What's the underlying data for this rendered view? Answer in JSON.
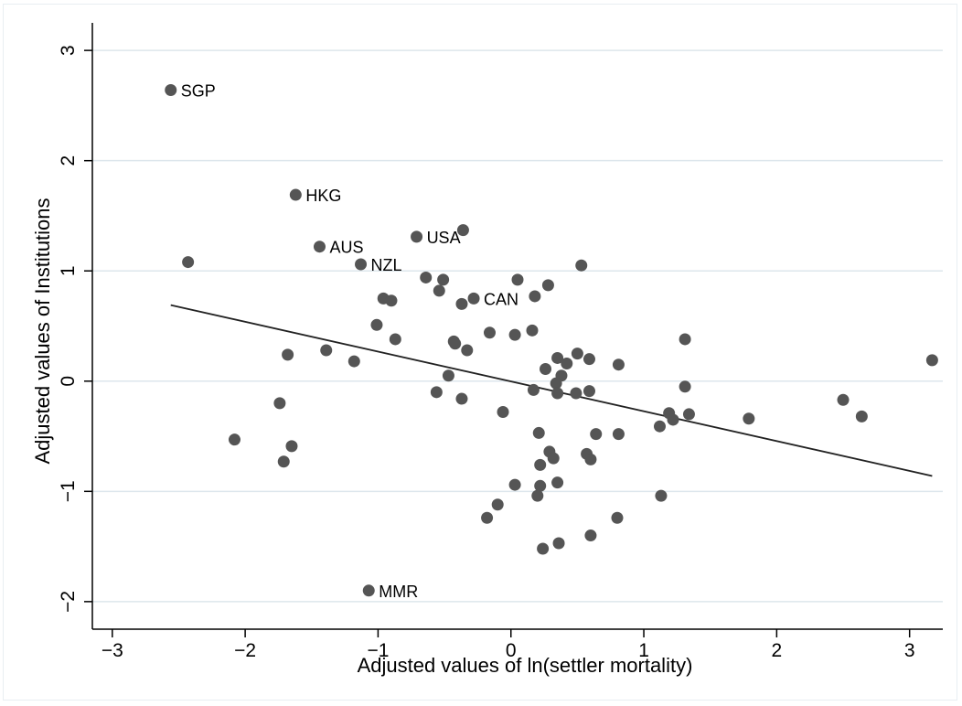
{
  "chart_data": {
    "type": "scatter",
    "title": "",
    "xlabel": "Adjusted values of ln(settler mortality)",
    "ylabel": "Adjusted values of Institutions",
    "xlim": [
      -3.15,
      3.25
    ],
    "ylim": [
      -2.25,
      3.25
    ],
    "xticks": [
      -3,
      -2,
      -1,
      0,
      1,
      2,
      3
    ],
    "xtick_labels": [
      "−3",
      "−2",
      "−1",
      "0",
      "1",
      "2",
      "3"
    ],
    "yticks": [
      -2,
      -1,
      0,
      1,
      2,
      3
    ],
    "ytick_labels": [
      "−2",
      "−1",
      "0",
      "1",
      "2",
      "3"
    ],
    "grid": "horizontal",
    "legend": "none",
    "colors": {
      "point": "#555555",
      "line": "#222222",
      "grid": "#dde6ec",
      "axis": "#000000"
    },
    "fit_line": {
      "x": [
        -2.56,
        3.17
      ],
      "y": [
        0.69,
        -0.86
      ]
    },
    "points": [
      {
        "x": -2.56,
        "y": 2.64,
        "label": "SGP"
      },
      {
        "x": -1.62,
        "y": 1.69,
        "label": "HKG"
      },
      {
        "x": -1.44,
        "y": 1.22,
        "label": "AUS"
      },
      {
        "x": -0.71,
        "y": 1.31,
        "label": "USA"
      },
      {
        "x": -1.13,
        "y": 1.06,
        "label": "NZL"
      },
      {
        "x": -0.28,
        "y": 0.75,
        "label": "CAN"
      },
      {
        "x": -1.07,
        "y": -1.9,
        "label": "MMR"
      },
      {
        "x": -2.43,
        "y": 1.08
      },
      {
        "x": -0.36,
        "y": 1.37
      },
      {
        "x": -0.64,
        "y": 0.94
      },
      {
        "x": -0.51,
        "y": 0.92
      },
      {
        "x": -0.54,
        "y": 0.82
      },
      {
        "x": 0.05,
        "y": 0.92
      },
      {
        "x": 0.28,
        "y": 0.87
      },
      {
        "x": 0.53,
        "y": 1.05
      },
      {
        "x": 0.18,
        "y": 0.77
      },
      {
        "x": -0.37,
        "y": 0.7
      },
      {
        "x": -0.96,
        "y": 0.75
      },
      {
        "x": -0.9,
        "y": 0.73
      },
      {
        "x": -1.01,
        "y": 0.51
      },
      {
        "x": -0.87,
        "y": 0.38
      },
      {
        "x": -0.16,
        "y": 0.44
      },
      {
        "x": 0.03,
        "y": 0.42
      },
      {
        "x": 0.16,
        "y": 0.46
      },
      {
        "x": -0.43,
        "y": 0.36
      },
      {
        "x": -0.42,
        "y": 0.34
      },
      {
        "x": -0.33,
        "y": 0.28
      },
      {
        "x": -1.39,
        "y": 0.28
      },
      {
        "x": -1.18,
        "y": 0.18
      },
      {
        "x": -1.68,
        "y": 0.24
      },
      {
        "x": 0.35,
        "y": 0.21
      },
      {
        "x": 0.5,
        "y": 0.25
      },
      {
        "x": 0.59,
        "y": 0.2
      },
      {
        "x": 0.42,
        "y": 0.16
      },
      {
        "x": 0.81,
        "y": 0.15
      },
      {
        "x": 0.26,
        "y": 0.11
      },
      {
        "x": 0.38,
        "y": 0.05
      },
      {
        "x": -0.47,
        "y": 0.05
      },
      {
        "x": 1.31,
        "y": 0.38
      },
      {
        "x": 3.17,
        "y": 0.19
      },
      {
        "x": 0.34,
        "y": -0.02
      },
      {
        "x": 0.35,
        "y": -0.11
      },
      {
        "x": 0.49,
        "y": -0.11
      },
      {
        "x": 0.59,
        "y": -0.09
      },
      {
        "x": 0.17,
        "y": -0.08
      },
      {
        "x": -0.56,
        "y": -0.1
      },
      {
        "x": -0.37,
        "y": -0.16
      },
      {
        "x": -0.06,
        "y": -0.28
      },
      {
        "x": 1.31,
        "y": -0.05
      },
      {
        "x": 1.19,
        "y": -0.29
      },
      {
        "x": 1.22,
        "y": -0.35
      },
      {
        "x": 1.34,
        "y": -0.3
      },
      {
        "x": 1.12,
        "y": -0.41
      },
      {
        "x": 1.79,
        "y": -0.34
      },
      {
        "x": 2.5,
        "y": -0.17
      },
      {
        "x": 2.64,
        "y": -0.32
      },
      {
        "x": -1.74,
        "y": -0.2
      },
      {
        "x": -2.08,
        "y": -0.53
      },
      {
        "x": -1.65,
        "y": -0.59
      },
      {
        "x": -1.71,
        "y": -0.73
      },
      {
        "x": 0.21,
        "y": -0.47
      },
      {
        "x": 0.64,
        "y": -0.48
      },
      {
        "x": 0.81,
        "y": -0.48
      },
      {
        "x": 0.29,
        "y": -0.64
      },
      {
        "x": 0.57,
        "y": -0.66
      },
      {
        "x": 0.32,
        "y": -0.7
      },
      {
        "x": 0.6,
        "y": -0.71
      },
      {
        "x": 0.22,
        "y": -0.76
      },
      {
        "x": 0.03,
        "y": -0.94
      },
      {
        "x": 0.22,
        "y": -0.95
      },
      {
        "x": 0.35,
        "y": -0.92
      },
      {
        "x": 0.2,
        "y": -1.04
      },
      {
        "x": 1.13,
        "y": -1.04
      },
      {
        "x": -0.1,
        "y": -1.12
      },
      {
        "x": -0.18,
        "y": -1.24
      },
      {
        "x": 0.8,
        "y": -1.24
      },
      {
        "x": 0.6,
        "y": -1.4
      },
      {
        "x": 0.36,
        "y": -1.47
      },
      {
        "x": 0.24,
        "y": -1.52
      }
    ]
  }
}
